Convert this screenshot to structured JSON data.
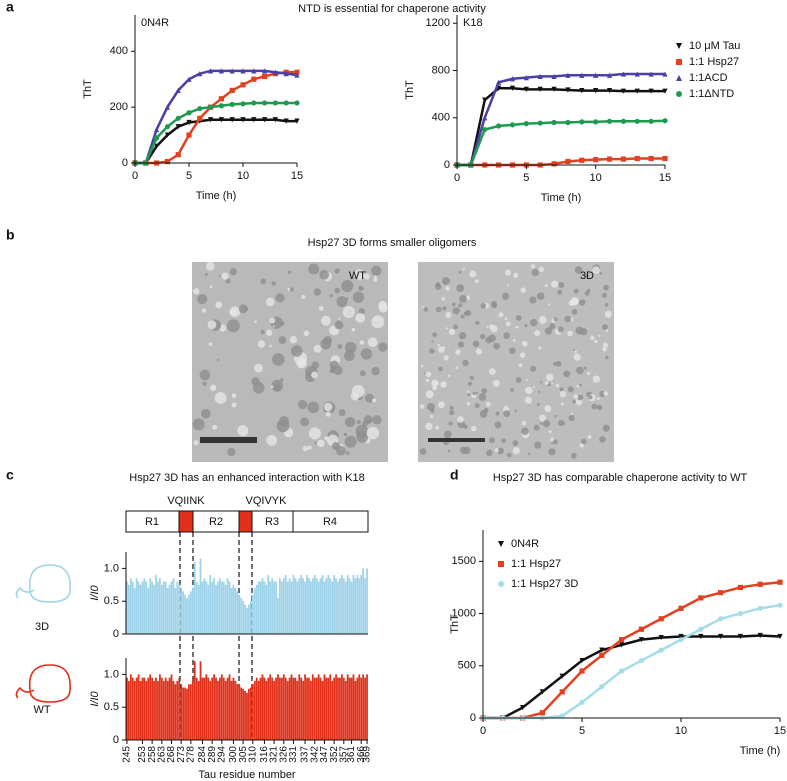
{
  "figure": {
    "panel_labels": [
      "a",
      "b",
      "c",
      "d"
    ],
    "a_title": "NTD is essential for chaperone activity",
    "b_title": "Hsp27 3D forms smaller oligomers",
    "b_images": [
      "WT",
      "3D"
    ],
    "c_title": "Hsp27 3D has an enhanced interaction with K18",
    "c_segments": [
      "R1",
      "R2",
      "R3",
      "R4"
    ],
    "c_motifs": [
      "VQIINK",
      "VQIVYK"
    ],
    "d_title": "Hsp27 3D has comparable chaperone activity to WT"
  },
  "chart_data": [
    {
      "type": "line",
      "label": "0N4R",
      "xlabel": "Time (h)",
      "ylabel": "ThT",
      "x": [
        0,
        1,
        2,
        3,
        4,
        5,
        6,
        7,
        8,
        9,
        10,
        11,
        12,
        13,
        14,
        15
      ],
      "xlim": [
        0,
        15
      ],
      "xticks": [
        0,
        5,
        10,
        15
      ],
      "ylim": [
        0,
        530
      ],
      "yticks": [
        0,
        200,
        400
      ],
      "series": [
        {
          "color": "#111111",
          "marker": "triangle-down",
          "values": [
            0,
            0,
            60,
            100,
            130,
            145,
            150,
            155,
            155,
            155,
            155,
            155,
            155,
            155,
            150,
            150
          ]
        },
        {
          "color": "#e2401f",
          "marker": "square",
          "values": [
            0,
            0,
            0,
            5,
            30,
            100,
            160,
            200,
            230,
            260,
            280,
            300,
            310,
            320,
            325,
            325
          ]
        },
        {
          "color": "#4b3fa8",
          "marker": "triangle",
          "values": [
            0,
            0,
            120,
            200,
            260,
            300,
            320,
            330,
            330,
            330,
            330,
            330,
            330,
            325,
            320,
            315
          ]
        },
        {
          "color": "#1e9a50",
          "marker": "circle",
          "values": [
            0,
            0,
            90,
            130,
            160,
            180,
            195,
            200,
            205,
            210,
            212,
            215,
            215,
            215,
            215,
            215
          ]
        }
      ]
    },
    {
      "type": "line",
      "label": "K18",
      "xlabel": "Time (h)",
      "ylabel": "ThT",
      "legend": "right",
      "x": [
        0,
        1,
        2,
        3,
        4,
        5,
        6,
        7,
        8,
        9,
        10,
        11,
        12,
        13,
        14,
        15
      ],
      "xlim": [
        0,
        15
      ],
      "xticks": [
        0,
        5,
        10,
        15
      ],
      "ylim": [
        0,
        1270
      ],
      "yticks": [
        0,
        400,
        800,
        1200
      ],
      "series": [
        {
          "name": "10 μM Tau",
          "color": "#111111",
          "marker": "triangle-down",
          "values": [
            0,
            0,
            550,
            650,
            650,
            640,
            640,
            640,
            635,
            630,
            630,
            630,
            625,
            625,
            625,
            625
          ]
        },
        {
          "name": "1:1 Hsp27",
          "color": "#e2401f",
          "marker": "square",
          "values": [
            0,
            0,
            0,
            0,
            0,
            0,
            0,
            10,
            30,
            40,
            45,
            50,
            50,
            55,
            55,
            55
          ]
        },
        {
          "name": "1:1ACD",
          "color": "#4b3fa8",
          "marker": "triangle",
          "values": [
            0,
            0,
            400,
            700,
            730,
            740,
            750,
            750,
            760,
            760,
            760,
            760,
            770,
            770,
            770,
            770
          ]
        },
        {
          "name": "1:1ΔNTD",
          "color": "#1e9a50",
          "marker": "circle",
          "values": [
            0,
            0,
            300,
            330,
            340,
            350,
            355,
            360,
            360,
            365,
            365,
            370,
            370,
            370,
            370,
            375
          ]
        }
      ]
    },
    {
      "type": "bar",
      "ylabel": "I/I0",
      "xlim": [
        244.5,
        369.5
      ],
      "ylim": [
        0,
        1.25
      ],
      "yticks": [
        0,
        0.5,
        {
          "value": 1,
          "label": "1.0"
        }
      ],
      "x": [
        245,
        246,
        247,
        248,
        249,
        250,
        251,
        252,
        253,
        254,
        255,
        256,
        257,
        258,
        259,
        260,
        261,
        262,
        263,
        264,
        265,
        266,
        267,
        268,
        269,
        270,
        271,
        272,
        273,
        274,
        275,
        276,
        277,
        278,
        279,
        280,
        281,
        282,
        283,
        284,
        285,
        286,
        287,
        288,
        289,
        290,
        291,
        292,
        293,
        294,
        295,
        296,
        297,
        298,
        299,
        300,
        301,
        302,
        303,
        304,
        305,
        306,
        307,
        308,
        309,
        310,
        311,
        312,
        313,
        314,
        315,
        316,
        317,
        318,
        319,
        320,
        321,
        322,
        323,
        324,
        325,
        326,
        327,
        328,
        329,
        330,
        331,
        332,
        333,
        334,
        335,
        336,
        337,
        338,
        339,
        340,
        341,
        342,
        343,
        344,
        345,
        346,
        347,
        348,
        349,
        350,
        351,
        352,
        353,
        354,
        355,
        356,
        357,
        358,
        359,
        360,
        361,
        362,
        363,
        364,
        365,
        366,
        367,
        368,
        369
      ],
      "series": [
        {
          "name": "3D",
          "color": "#9fd3ea",
          "values": [
            0.8,
            0.75,
            0.85,
            0.8,
            0.7,
            0.85,
            0.8,
            0.75,
            0.8,
            0.85,
            0.8,
            0.7,
            0.85,
            0.8,
            0.75,
            0.9,
            0.8,
            0.85,
            0.75,
            0.8,
            0.8,
            0.7,
            0.75,
            0.8,
            0.85,
            0.7,
            0.8,
            0.75,
            0.7,
            0.65,
            0.6,
            0.55,
            0.6,
            0.65,
            0.7,
            1.1,
            0.8,
            0.75,
            1.15,
            0.8,
            0.85,
            0.8,
            0.75,
            0.9,
            0.8,
            0.85,
            0.75,
            0.8,
            0.85,
            0.8,
            0.8,
            0.75,
            0.85,
            0.8,
            0.7,
            0.75,
            0.7,
            0.65,
            0.6,
            0.55,
            0.5,
            0.45,
            0.4,
            0.45,
            0.5,
            0.6,
            0.7,
            0.75,
            0.8,
            0.8,
            0.85,
            0.8,
            0.75,
            0.9,
            0.8,
            0.85,
            0.8,
            0.8,
            0.55,
            0.85,
            0.8,
            0.85,
            0.9,
            0.8,
            0.85,
            0.8,
            0.9,
            0.85,
            0.8,
            0.85,
            0.9,
            0.85,
            0.8,
            0.9,
            0.85,
            0.8,
            0.85,
            0.9,
            0.85,
            0.8,
            0.85,
            0.9,
            0.8,
            0.85,
            0.9,
            0.85,
            0.8,
            0.9,
            0.85,
            0.8,
            0.85,
            0.9,
            0.85,
            0.8,
            0.9,
            0.85,
            0.8,
            0.9,
            0.85,
            0.9,
            0.85,
            0.9,
            1.0,
            0.85,
            1.0
          ]
        }
      ]
    },
    {
      "type": "bar",
      "ylabel": "I/I0",
      "xlabel": "Tau residue number",
      "xlim": [
        244.5,
        369.5
      ],
      "ylim": [
        0,
        1.25
      ],
      "yticks": [
        0,
        0.5,
        {
          "value": 1,
          "label": "1.0"
        }
      ],
      "xticks": [
        245,
        253,
        258,
        263,
        268,
        273,
        278,
        284,
        289,
        294,
        300,
        305,
        310,
        316,
        321,
        326,
        331,
        337,
        342,
        347,
        352,
        357,
        361,
        366,
        369
      ],
      "x": [
        245,
        246,
        247,
        248,
        249,
        250,
        251,
        252,
        253,
        254,
        255,
        256,
        257,
        258,
        259,
        260,
        261,
        262,
        263,
        264,
        265,
        266,
        267,
        268,
        269,
        270,
        271,
        272,
        273,
        274,
        275,
        276,
        277,
        278,
        279,
        280,
        281,
        282,
        283,
        284,
        285,
        286,
        287,
        288,
        289,
        290,
        291,
        292,
        293,
        294,
        295,
        296,
        297,
        298,
        299,
        300,
        301,
        302,
        303,
        304,
        305,
        306,
        307,
        308,
        309,
        310,
        311,
        312,
        313,
        314,
        315,
        316,
        317,
        318,
        319,
        320,
        321,
        322,
        323,
        324,
        325,
        326,
        327,
        328,
        329,
        330,
        331,
        332,
        333,
        334,
        335,
        336,
        337,
        338,
        339,
        340,
        341,
        342,
        343,
        344,
        345,
        346,
        347,
        348,
        349,
        350,
        351,
        352,
        353,
        354,
        355,
        356,
        357,
        358,
        359,
        360,
        361,
        362,
        363,
        364,
        365,
        366,
        367,
        368,
        369
      ],
      "series": [
        {
          "name": "WT",
          "color": "#e2301a",
          "values": [
            0.95,
            0.9,
            1.0,
            0.95,
            0.9,
            0.95,
            1.0,
            0.9,
            0.95,
            0.95,
            0.9,
            0.95,
            1.0,
            0.95,
            0.9,
            0.95,
            0.9,
            1.0,
            0.95,
            0.9,
            0.95,
            0.9,
            0.95,
            1.0,
            0.9,
            0.85,
            0.9,
            0.95,
            0.85,
            0.8,
            0.8,
            0.78,
            0.85,
            0.85,
            0.9,
            1.2,
            0.95,
            0.9,
            1.2,
            0.95,
            0.95,
            1.0,
            0.95,
            0.9,
            0.95,
            1.0,
            0.95,
            0.9,
            0.95,
            1.0,
            0.95,
            0.9,
            0.95,
            1.0,
            0.9,
            0.95,
            0.9,
            0.85,
            0.85,
            0.8,
            0.78,
            0.75,
            0.72,
            0.78,
            0.8,
            0.85,
            0.9,
            0.95,
            0.9,
            0.95,
            1.0,
            0.95,
            0.9,
            0.95,
            1.0,
            0.95,
            0.9,
            0.95,
            1.0,
            0.95,
            0.95,
            1.0,
            0.95,
            0.9,
            0.95,
            1.0,
            0.95,
            0.95,
            0.9,
            1.0,
            0.95,
            0.9,
            1.0,
            0.95,
            0.95,
            0.9,
            1.0,
            0.95,
            0.95,
            1.0,
            0.95,
            0.9,
            1.0,
            0.95,
            0.95,
            1.0,
            0.9,
            0.95,
            1.0,
            0.95,
            0.95,
            1.0,
            0.95,
            0.9,
            1.0,
            0.95,
            0.95,
            1.0,
            0.9,
            0.95,
            1.0,
            0.95,
            1.0,
            0.95,
            1.0
          ]
        }
      ]
    },
    {
      "type": "line",
      "xlabel": "Time (h)",
      "ylabel": "ThT",
      "legend": "upper left",
      "x": [
        0,
        1,
        2,
        3,
        4,
        5,
        6,
        7,
        8,
        9,
        10,
        11,
        12,
        13,
        14,
        15
      ],
      "xlim": [
        0,
        15
      ],
      "xticks": [
        0,
        5,
        10,
        15
      ],
      "ylim": [
        0,
        1800
      ],
      "yticks": [
        0,
        500,
        1000,
        1500
      ],
      "series": [
        {
          "name": "0N4R",
          "color": "#111111",
          "marker": "triangle-down",
          "values": [
            0,
            0,
            100,
            250,
            400,
            550,
            650,
            700,
            750,
            770,
            780,
            780,
            780,
            780,
            790,
            780
          ]
        },
        {
          "name": "1:1 Hsp27",
          "color": "#e2401f",
          "marker": "square",
          "values": [
            0,
            0,
            0,
            50,
            250,
            450,
            600,
            750,
            850,
            950,
            1050,
            1150,
            1200,
            1250,
            1280,
            1300
          ]
        },
        {
          "name": "1:1 Hsp27 3D",
          "color": "#a6dce8",
          "marker": "circle",
          "values": [
            0,
            0,
            0,
            0,
            20,
            150,
            300,
            450,
            550,
            650,
            750,
            850,
            950,
            1000,
            1050,
            1080
          ]
        }
      ]
    }
  ]
}
